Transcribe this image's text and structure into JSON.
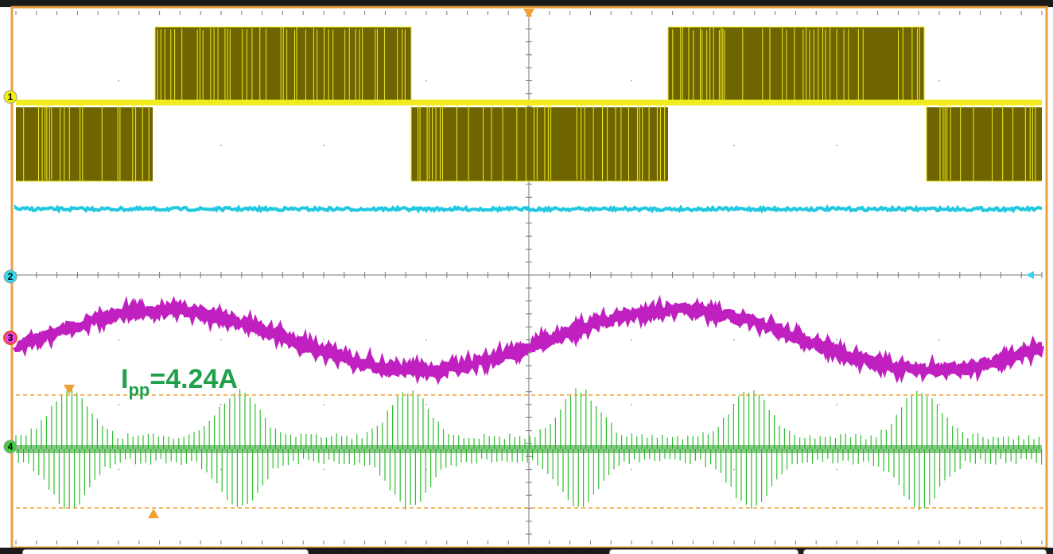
{
  "channels": [
    "1",
    "2",
    "3",
    "4"
  ],
  "annotation": {
    "main": "I",
    "subscript": "pp",
    "value": "=4.24A"
  }
}
